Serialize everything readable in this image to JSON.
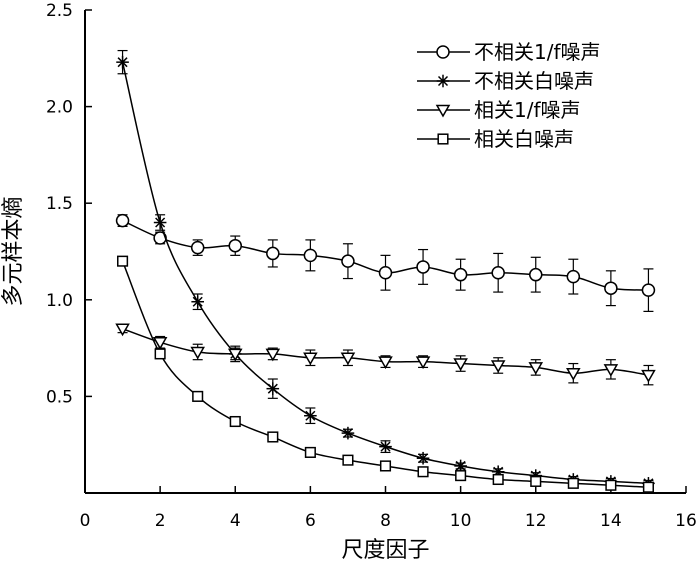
{
  "chart_data": {
    "type": "line",
    "xlabel": "尺度因子",
    "ylabel": "多元样本熵",
    "xlim": [
      0,
      16
    ],
    "ylim": [
      0,
      2.5
    ],
    "xticks": [
      0,
      2,
      4,
      6,
      8,
      10,
      12,
      14,
      16
    ],
    "yticks": [
      0.5,
      1.0,
      1.5,
      2.0,
      2.5
    ],
    "ytick_labels": [
      "0.5",
      "1.0",
      "1.5",
      "2.0",
      "2.5"
    ],
    "legend_position": "top-right",
    "grid": false,
    "x": [
      1,
      2,
      3,
      4,
      5,
      6,
      7,
      8,
      9,
      10,
      11,
      12,
      13,
      14,
      15
    ],
    "series": [
      {
        "name": "不相关1/f噪声",
        "marker": "circle",
        "values": [
          1.41,
          1.32,
          1.27,
          1.28,
          1.24,
          1.23,
          1.2,
          1.14,
          1.17,
          1.13,
          1.14,
          1.13,
          1.12,
          1.06,
          1.05
        ],
        "errors": [
          0.03,
          0.03,
          0.04,
          0.05,
          0.07,
          0.08,
          0.09,
          0.09,
          0.09,
          0.08,
          0.1,
          0.09,
          0.09,
          0.09,
          0.11
        ]
      },
      {
        "name": "不相关白噪声",
        "marker": "star",
        "values": [
          2.23,
          1.4,
          0.99,
          0.72,
          0.54,
          0.4,
          0.31,
          0.24,
          0.18,
          0.14,
          0.11,
          0.09,
          0.07,
          0.06,
          0.05
        ],
        "errors": [
          0.06,
          0.04,
          0.04,
          0.03,
          0.05,
          0.04,
          0.02,
          0.03,
          0.02,
          0.015,
          0.015,
          0.015,
          0.015,
          0.015,
          0.015
        ]
      },
      {
        "name": "相关1/f噪声",
        "marker": "triangle-down",
        "values": [
          0.85,
          0.78,
          0.73,
          0.72,
          0.72,
          0.7,
          0.7,
          0.68,
          0.68,
          0.67,
          0.66,
          0.65,
          0.62,
          0.64,
          0.61
        ],
        "errors": [
          0.02,
          0.03,
          0.04,
          0.04,
          0.03,
          0.04,
          0.04,
          0.03,
          0.03,
          0.04,
          0.04,
          0.04,
          0.05,
          0.05,
          0.05
        ]
      },
      {
        "name": "相关白噪声",
        "marker": "square",
        "values": [
          1.2,
          0.72,
          0.5,
          0.37,
          0.29,
          0.21,
          0.17,
          0.14,
          0.11,
          0.09,
          0.07,
          0.06,
          0.05,
          0.04,
          0.03
        ],
        "errors": [
          0.01,
          0.01,
          0.01,
          0.01,
          0.01,
          0.01,
          0.01,
          0.01,
          0.01,
          0.01,
          0.01,
          0.01,
          0.01,
          0.01,
          0.01
        ]
      }
    ]
  }
}
